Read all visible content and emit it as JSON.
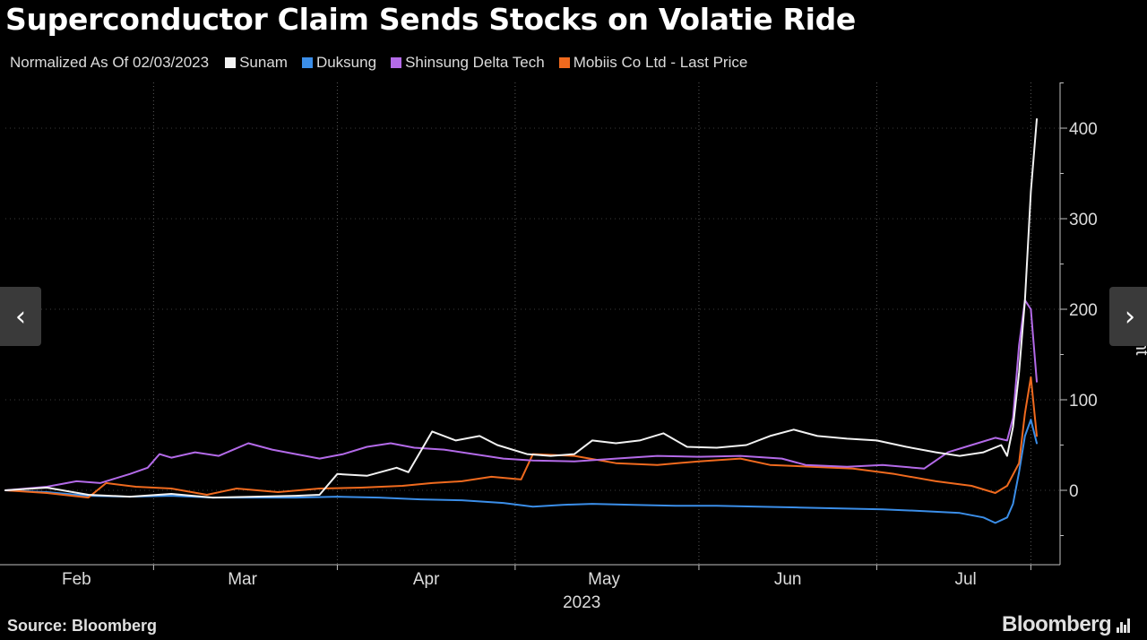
{
  "title": "Superconductor Claim Sends Stocks on Volatie Ride",
  "subtitle": "Normalized As Of 02/03/2023",
  "source": "Source: Bloomberg",
  "brand": "Bloomberg",
  "nav": {
    "prev_icon": "chevron-left-icon",
    "next_icon": "chevron-right-icon"
  },
  "chart_data": {
    "type": "line",
    "title": "Superconductor Claim Sends Stocks on Volatie Ride",
    "subtitle": "Normalized As Of 02/03/2023",
    "ylabel": "Percent",
    "xlabel": "2023",
    "x_start": "2023-02-03",
    "x_end": "2023-07-27",
    "ylim": [
      -80,
      450
    ],
    "yticks": [
      0,
      100,
      200,
      300,
      400
    ],
    "xticks": [
      {
        "label": "Feb",
        "date": "2023-02-15"
      },
      {
        "label": "Mar",
        "date": "2023-03-15"
      },
      {
        "label": "Apr",
        "date": "2023-04-15"
      },
      {
        "label": "May",
        "date": "2023-05-15"
      },
      {
        "label": "Jun",
        "date": "2023-06-15"
      },
      {
        "label": "Jul",
        "date": "2023-07-15"
      }
    ],
    "grid_dates": [
      "2023-02-28",
      "2023-03-31",
      "2023-04-30",
      "2023-05-31",
      "2023-06-30",
      "2023-07-26"
    ],
    "grid": "vertical dotted",
    "legend_position": "top",
    "series": [
      {
        "name": "Sunam",
        "color": "#f2f2f2",
        "points": [
          [
            "2023-02-03",
            0
          ],
          [
            "2023-02-10",
            3
          ],
          [
            "2023-02-17",
            -5
          ],
          [
            "2023-02-24",
            -7
          ],
          [
            "2023-03-03",
            -4
          ],
          [
            "2023-03-10",
            -8
          ],
          [
            "2023-03-17",
            -7
          ],
          [
            "2023-03-24",
            -6
          ],
          [
            "2023-03-28",
            -5
          ],
          [
            "2023-03-31",
            18
          ],
          [
            "2023-04-05",
            16
          ],
          [
            "2023-04-10",
            25
          ],
          [
            "2023-04-12",
            20
          ],
          [
            "2023-04-16",
            65
          ],
          [
            "2023-04-20",
            55
          ],
          [
            "2023-04-24",
            60
          ],
          [
            "2023-04-27",
            50
          ],
          [
            "2023-05-02",
            40
          ],
          [
            "2023-05-06",
            38
          ],
          [
            "2023-05-10",
            40
          ],
          [
            "2023-05-13",
            55
          ],
          [
            "2023-05-17",
            52
          ],
          [
            "2023-05-21",
            55
          ],
          [
            "2023-05-25",
            63
          ],
          [
            "2023-05-29",
            48
          ],
          [
            "2023-06-03",
            47
          ],
          [
            "2023-06-08",
            50
          ],
          [
            "2023-06-12",
            60
          ],
          [
            "2023-06-16",
            67
          ],
          [
            "2023-06-20",
            60
          ],
          [
            "2023-06-25",
            57
          ],
          [
            "2023-06-30",
            55
          ],
          [
            "2023-07-05",
            48
          ],
          [
            "2023-07-10",
            42
          ],
          [
            "2023-07-14",
            38
          ],
          [
            "2023-07-18",
            42
          ],
          [
            "2023-07-21",
            50
          ],
          [
            "2023-07-22",
            38
          ],
          [
            "2023-07-23",
            70
          ],
          [
            "2023-07-24",
            130
          ],
          [
            "2023-07-25",
            210
          ],
          [
            "2023-07-26",
            330
          ],
          [
            "2023-07-27",
            410
          ]
        ]
      },
      {
        "name": "Duksung",
        "color": "#3b8ee8",
        "points": [
          [
            "2023-02-03",
            0
          ],
          [
            "2023-02-10",
            -2
          ],
          [
            "2023-02-17",
            -6
          ],
          [
            "2023-02-24",
            -7
          ],
          [
            "2023-03-03",
            -6
          ],
          [
            "2023-03-10",
            -8
          ],
          [
            "2023-03-17",
            -8
          ],
          [
            "2023-03-24",
            -8
          ],
          [
            "2023-03-31",
            -7
          ],
          [
            "2023-04-07",
            -8
          ],
          [
            "2023-04-14",
            -10
          ],
          [
            "2023-04-21",
            -11
          ],
          [
            "2023-04-28",
            -14
          ],
          [
            "2023-05-03",
            -18
          ],
          [
            "2023-05-08",
            -16
          ],
          [
            "2023-05-13",
            -15
          ],
          [
            "2023-05-20",
            -16
          ],
          [
            "2023-05-27",
            -17
          ],
          [
            "2023-06-03",
            -17
          ],
          [
            "2023-06-10",
            -18
          ],
          [
            "2023-06-17",
            -19
          ],
          [
            "2023-06-24",
            -20
          ],
          [
            "2023-07-01",
            -21
          ],
          [
            "2023-07-08",
            -23
          ],
          [
            "2023-07-14",
            -25
          ],
          [
            "2023-07-18",
            -30
          ],
          [
            "2023-07-20",
            -36
          ],
          [
            "2023-07-22",
            -30
          ],
          [
            "2023-07-23",
            -15
          ],
          [
            "2023-07-24",
            20
          ],
          [
            "2023-07-25",
            60
          ],
          [
            "2023-07-26",
            78
          ],
          [
            "2023-07-27",
            52
          ]
        ]
      },
      {
        "name": "Shinsung Delta Tech",
        "color": "#b36ae8",
        "points": [
          [
            "2023-02-03",
            0
          ],
          [
            "2023-02-10",
            4
          ],
          [
            "2023-02-15",
            10
          ],
          [
            "2023-02-19",
            8
          ],
          [
            "2023-02-24",
            18
          ],
          [
            "2023-02-27",
            25
          ],
          [
            "2023-03-01",
            40
          ],
          [
            "2023-03-03",
            36
          ],
          [
            "2023-03-07",
            42
          ],
          [
            "2023-03-11",
            38
          ],
          [
            "2023-03-16",
            52
          ],
          [
            "2023-03-20",
            45
          ],
          [
            "2023-03-24",
            40
          ],
          [
            "2023-03-28",
            35
          ],
          [
            "2023-04-01",
            40
          ],
          [
            "2023-04-05",
            48
          ],
          [
            "2023-04-09",
            52
          ],
          [
            "2023-04-13",
            47
          ],
          [
            "2023-04-18",
            45
          ],
          [
            "2023-04-23",
            40
          ],
          [
            "2023-04-28",
            35
          ],
          [
            "2023-05-03",
            33
          ],
          [
            "2023-05-10",
            32
          ],
          [
            "2023-05-17",
            35
          ],
          [
            "2023-05-24",
            38
          ],
          [
            "2023-05-31",
            37
          ],
          [
            "2023-06-07",
            38
          ],
          [
            "2023-06-14",
            35
          ],
          [
            "2023-06-18",
            28
          ],
          [
            "2023-06-25",
            26
          ],
          [
            "2023-07-01",
            28
          ],
          [
            "2023-07-08",
            24
          ],
          [
            "2023-07-12",
            42
          ],
          [
            "2023-07-16",
            50
          ],
          [
            "2023-07-20",
            58
          ],
          [
            "2023-07-22",
            55
          ],
          [
            "2023-07-23",
            80
          ],
          [
            "2023-07-24",
            160
          ],
          [
            "2023-07-25",
            210
          ],
          [
            "2023-07-26",
            200
          ],
          [
            "2023-07-27",
            120
          ]
        ]
      },
      {
        "name": "Mobiis Co Ltd - Last Price",
        "color": "#f06a1e",
        "points": [
          [
            "2023-02-03",
            0
          ],
          [
            "2023-02-10",
            -3
          ],
          [
            "2023-02-17",
            -8
          ],
          [
            "2023-02-20",
            8
          ],
          [
            "2023-02-25",
            4
          ],
          [
            "2023-03-03",
            2
          ],
          [
            "2023-03-09",
            -5
          ],
          [
            "2023-03-14",
            2
          ],
          [
            "2023-03-21",
            -2
          ],
          [
            "2023-03-28",
            2
          ],
          [
            "2023-04-04",
            3
          ],
          [
            "2023-04-11",
            5
          ],
          [
            "2023-04-16",
            8
          ],
          [
            "2023-04-21",
            10
          ],
          [
            "2023-04-26",
            15
          ],
          [
            "2023-05-01",
            12
          ],
          [
            "2023-05-03",
            40
          ],
          [
            "2023-05-10",
            38
          ],
          [
            "2023-05-17",
            30
          ],
          [
            "2023-05-24",
            28
          ],
          [
            "2023-05-31",
            32
          ],
          [
            "2023-06-07",
            35
          ],
          [
            "2023-06-12",
            28
          ],
          [
            "2023-06-19",
            26
          ],
          [
            "2023-06-26",
            24
          ],
          [
            "2023-07-03",
            18
          ],
          [
            "2023-07-10",
            10
          ],
          [
            "2023-07-16",
            5
          ],
          [
            "2023-07-20",
            -3
          ],
          [
            "2023-07-22",
            5
          ],
          [
            "2023-07-24",
            30
          ],
          [
            "2023-07-25",
            85
          ],
          [
            "2023-07-26",
            125
          ],
          [
            "2023-07-27",
            60
          ]
        ]
      }
    ]
  }
}
